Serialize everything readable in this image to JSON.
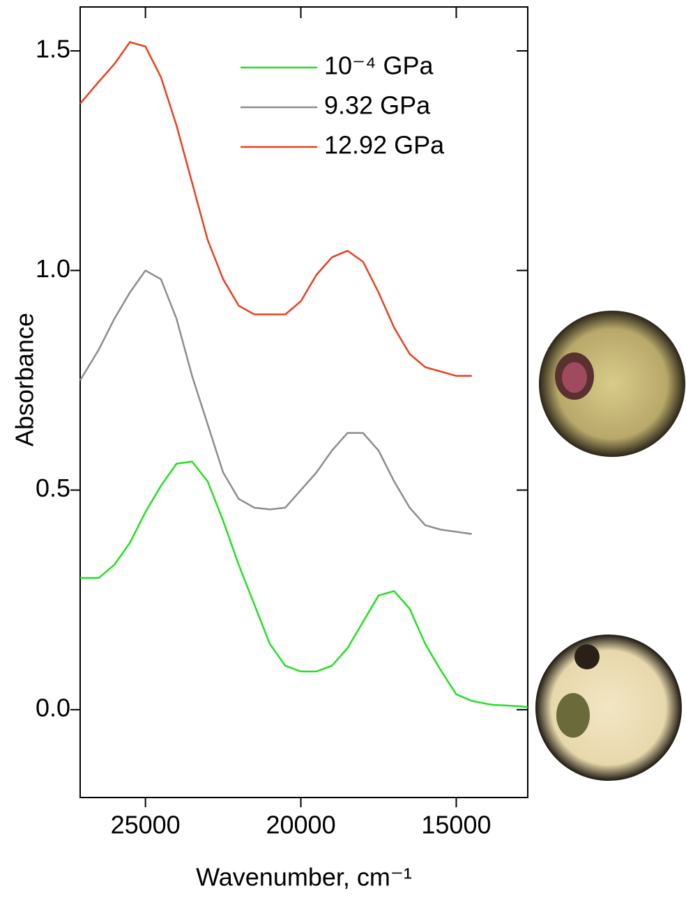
{
  "chart_data": {
    "type": "line",
    "xlabel": "Wavenumber, cm⁻¹",
    "ylabel": "Absorbance",
    "x": [
      27100,
      26500,
      26000,
      25500,
      25000,
      24500,
      24000,
      23500,
      23000,
      22500,
      22000,
      21500,
      21000,
      20500,
      20000,
      19500,
      19000,
      18500,
      18000,
      17500,
      17000,
      16500,
      16000,
      15500,
      15000,
      14500,
      14000,
      13800,
      13500,
      13000,
      12700
    ],
    "series": [
      {
        "name": "10⁻⁴ GPa",
        "color": "#22e022",
        "values": [
          0.3,
          0.3,
          0.33,
          0.38,
          0.45,
          0.51,
          0.56,
          0.565,
          0.52,
          0.43,
          0.33,
          0.24,
          0.15,
          0.1,
          0.087,
          0.087,
          0.1,
          0.14,
          0.2,
          0.26,
          0.27,
          0.23,
          0.15,
          0.09,
          0.035,
          0.02,
          0.013,
          0.011,
          0.01,
          0.008,
          0.006
        ]
      },
      {
        "name": "9.32 GPa",
        "color": "#8c8c8c",
        "values": [
          0.75,
          0.82,
          0.89,
          0.95,
          1.0,
          0.98,
          0.89,
          0.76,
          0.65,
          0.54,
          0.48,
          0.46,
          0.456,
          0.46,
          0.5,
          0.54,
          0.59,
          0.63,
          0.63,
          0.59,
          0.52,
          0.46,
          0.42,
          0.41,
          0.405,
          0.4,
          null,
          null,
          null,
          null,
          null
        ]
      },
      {
        "name": "12.92 GPa",
        "color": "#e8401c",
        "values": [
          1.38,
          1.43,
          1.47,
          1.52,
          1.51,
          1.44,
          1.33,
          1.2,
          1.07,
          0.98,
          0.92,
          0.9,
          0.9,
          0.9,
          0.93,
          0.99,
          1.03,
          1.045,
          1.02,
          0.95,
          0.87,
          0.81,
          0.78,
          0.77,
          0.76,
          0.76,
          null,
          null,
          null,
          null,
          null
        ]
      }
    ],
    "xlim": [
      27100,
      12700
    ],
    "ylim": [
      -0.2,
      1.6
    ],
    "xticks": [
      25000,
      20000,
      15000
    ],
    "yticks": [
      {
        "value": 0,
        "label": "0.0"
      },
      0.5,
      {
        "value": 1,
        "label": "1.0"
      },
      1.5
    ],
    "legend": "upper center",
    "grid": false
  }
}
